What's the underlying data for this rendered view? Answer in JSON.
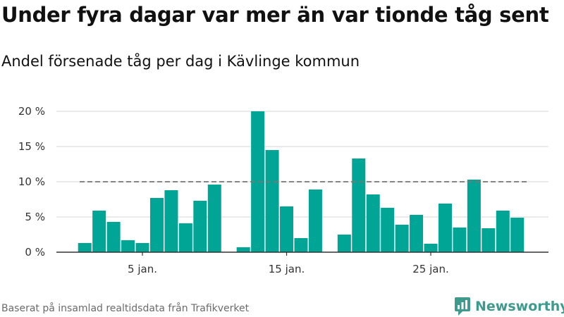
{
  "title": "Under fyra dagar var mer än var tionde tåg sent",
  "subtitle": "Andel försenade tåg per dag i Kävlinge kommun",
  "source": "Baserat på insamlad realtidsdata från Trafikverket",
  "logo": {
    "name": "Newsworthy",
    "icon": "newsworthy-logo-icon",
    "color": "#3e9a8d"
  },
  "chart_data": {
    "type": "bar",
    "x": [
      1,
      2,
      3,
      4,
      5,
      6,
      7,
      8,
      9,
      10,
      11,
      12,
      13,
      14,
      15,
      16,
      17,
      18,
      19,
      20,
      21,
      22,
      23,
      24,
      25,
      26,
      27,
      28,
      29,
      30,
      31
    ],
    "values": [
      1.3,
      5.9,
      4.3,
      1.7,
      1.3,
      7.7,
      8.8,
      4.1,
      7.3,
      9.6,
      null,
      0.7,
      20.0,
      14.5,
      6.5,
      2.0,
      8.9,
      null,
      2.5,
      13.3,
      8.2,
      6.3,
      3.9,
      5.3,
      1.2,
      6.9,
      3.5,
      10.3,
      3.4,
      5.9,
      4.9
    ],
    "ylim": [
      0,
      20
    ],
    "yticks": [
      0,
      5,
      10,
      15,
      20
    ],
    "ytick_labels": [
      "0 %",
      "5 %",
      "10 %",
      "15 %",
      "20 %"
    ],
    "xticks": [
      5,
      15,
      25
    ],
    "xtick_labels": [
      "5 jan.",
      "15 jan.",
      "25 jan."
    ],
    "reference_line": {
      "value": 10,
      "style": "dashed"
    },
    "grid": true,
    "bar_color": "#00a595",
    "grid_color": "#dddddd",
    "reference_color": "#777777"
  }
}
